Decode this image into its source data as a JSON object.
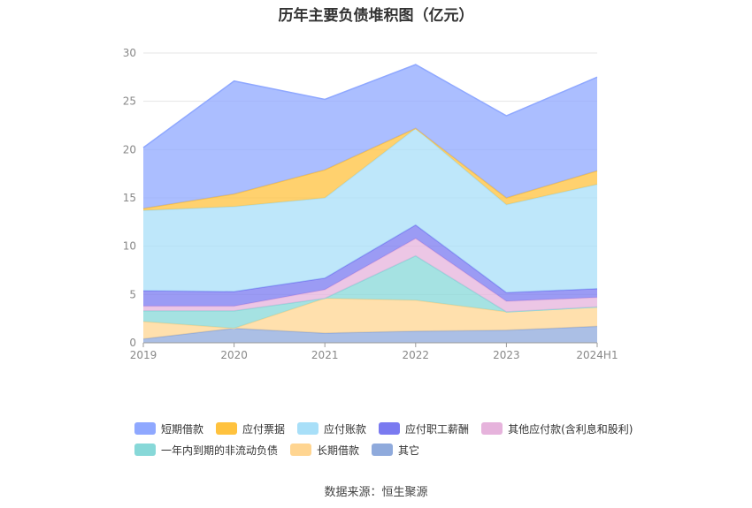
{
  "chart_data": {
    "type": "area",
    "title": "历年主要负债堆积图（亿元）",
    "xlabel": "",
    "ylabel": "",
    "categories": [
      "2019",
      "2020",
      "2021",
      "2022",
      "2023",
      "2024H1"
    ],
    "ylim": [
      0,
      30
    ],
    "yticks": [
      "0",
      "5",
      "10",
      "15",
      "20",
      "25",
      "30"
    ],
    "stacked": true,
    "grid": "horizontal",
    "legend_position": "bottom",
    "series": [
      {
        "name": "其它",
        "color": "#8faadc",
        "values": [
          0.4,
          1.5,
          1.0,
          1.2,
          1.3,
          1.7
        ]
      },
      {
        "name": "长期借款",
        "color": "#ffd591",
        "values": [
          1.8,
          0.0,
          3.6,
          3.2,
          1.9,
          2.0
        ]
      },
      {
        "name": "一年内到期的非流动负债",
        "color": "#87d8d8",
        "values": [
          1.1,
          1.8,
          0.0,
          4.6,
          0.0,
          0.0
        ]
      },
      {
        "name": "其他应付款(含利息和股利)",
        "color": "#e6b3dc",
        "values": [
          0.5,
          0.5,
          0.9,
          1.8,
          1.1,
          1.0
        ]
      },
      {
        "name": "应付职工薪酬",
        "color": "#7a7af0",
        "values": [
          1.6,
          1.5,
          1.2,
          1.4,
          0.9,
          0.9
        ]
      },
      {
        "name": "应付账款",
        "color": "#a8dff8",
        "values": [
          8.3,
          8.8,
          8.3,
          10.0,
          9.1,
          10.8
        ]
      },
      {
        "name": "应付票据",
        "color": "#ffc23e",
        "values": [
          0.2,
          1.3,
          2.9,
          0.0,
          0.7,
          1.4
        ]
      },
      {
        "name": "短期借款",
        "color": "#8fa8ff",
        "values": [
          6.3,
          11.7,
          7.3,
          6.6,
          8.5,
          9.7
        ]
      }
    ],
    "legend_order": [
      "短期借款",
      "应付票据",
      "应付账款",
      "应付职工薪酬",
      "其他应付款(含利息和股利)",
      "一年内到期的非流动负债",
      "长期借款",
      "其它"
    ]
  },
  "source": "数据来源：恒生聚源"
}
